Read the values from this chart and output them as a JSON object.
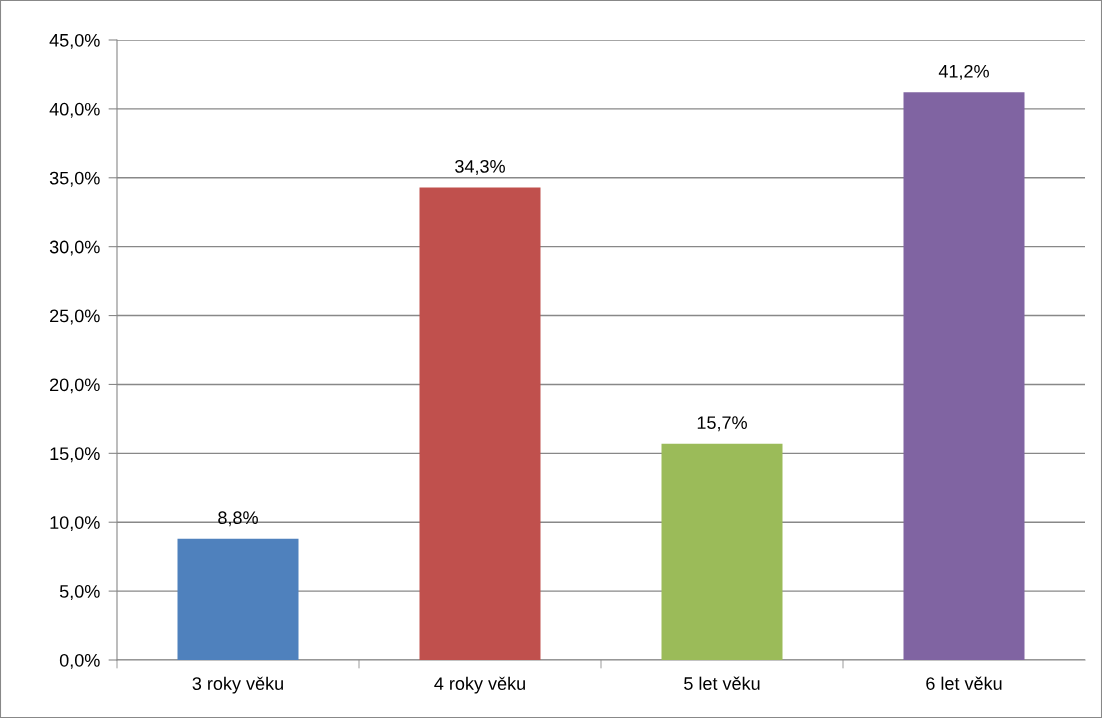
{
  "chart_data": {
    "type": "bar",
    "categories": [
      "3 roky věku",
      "4 roky věku",
      "5 let věku",
      "6 let věku"
    ],
    "values": [
      8.8,
      34.3,
      15.7,
      41.2
    ],
    "colors": [
      "#4f81bd",
      "#c0504d",
      "#9bbb59",
      "#8064a2"
    ],
    "value_labels": [
      "8,8%",
      "34,3%",
      "15,7%",
      "41,2%"
    ],
    "ylim": [
      0,
      45
    ],
    "yticks": [
      {
        "value": 0,
        "label": "0,0%"
      },
      {
        "value": 5,
        "label": "5,0%"
      },
      {
        "value": 10,
        "label": "10,0%"
      },
      {
        "value": 15,
        "label": "15,0%"
      },
      {
        "value": 20,
        "label": "20,0%"
      },
      {
        "value": 25,
        "label": "25,0%"
      },
      {
        "value": 30,
        "label": "30,0%"
      },
      {
        "value": 35,
        "label": "35,0%"
      },
      {
        "value": 40,
        "label": "40,0%"
      },
      {
        "value": 45,
        "label": "45,0%"
      }
    ],
    "grid": "y",
    "legend": false
  }
}
